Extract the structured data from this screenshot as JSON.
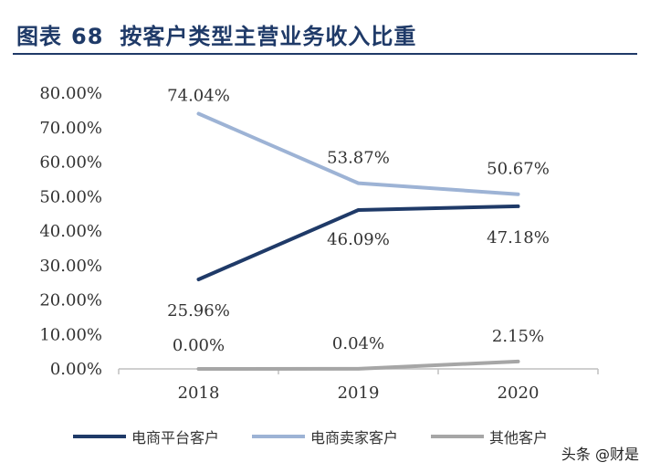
{
  "header": {
    "figure_label": "图表",
    "figure_number": "68",
    "title": "按客户类型主营业务收入比重"
  },
  "chart_data": {
    "type": "line",
    "categories": [
      "2018",
      "2019",
      "2020"
    ],
    "y_ticks": [
      "0.00%",
      "10.00%",
      "20.00%",
      "30.00%",
      "40.00%",
      "50.00%",
      "60.00%",
      "70.00%",
      "80.00%"
    ],
    "ylim": [
      0,
      80
    ],
    "grid": false,
    "legend_position": "bottom",
    "series": [
      {
        "name": "电商平台客户",
        "values": [
          25.96,
          46.09,
          47.18
        ],
        "labels": [
          "25.96%",
          "46.09%",
          "47.18%"
        ],
        "color": "#1f3a68"
      },
      {
        "name": "电商卖家客户",
        "values": [
          74.04,
          53.87,
          50.67
        ],
        "labels": [
          "74.04%",
          "53.87%",
          "50.67%"
        ],
        "color": "#9db3d5"
      },
      {
        "name": "其他客户",
        "values": [
          0.0,
          0.04,
          2.15
        ],
        "labels": [
          "0.00%",
          "0.04%",
          "2.15%"
        ],
        "color": "#a6a6a6"
      }
    ]
  },
  "watermark": "头条 @财是"
}
